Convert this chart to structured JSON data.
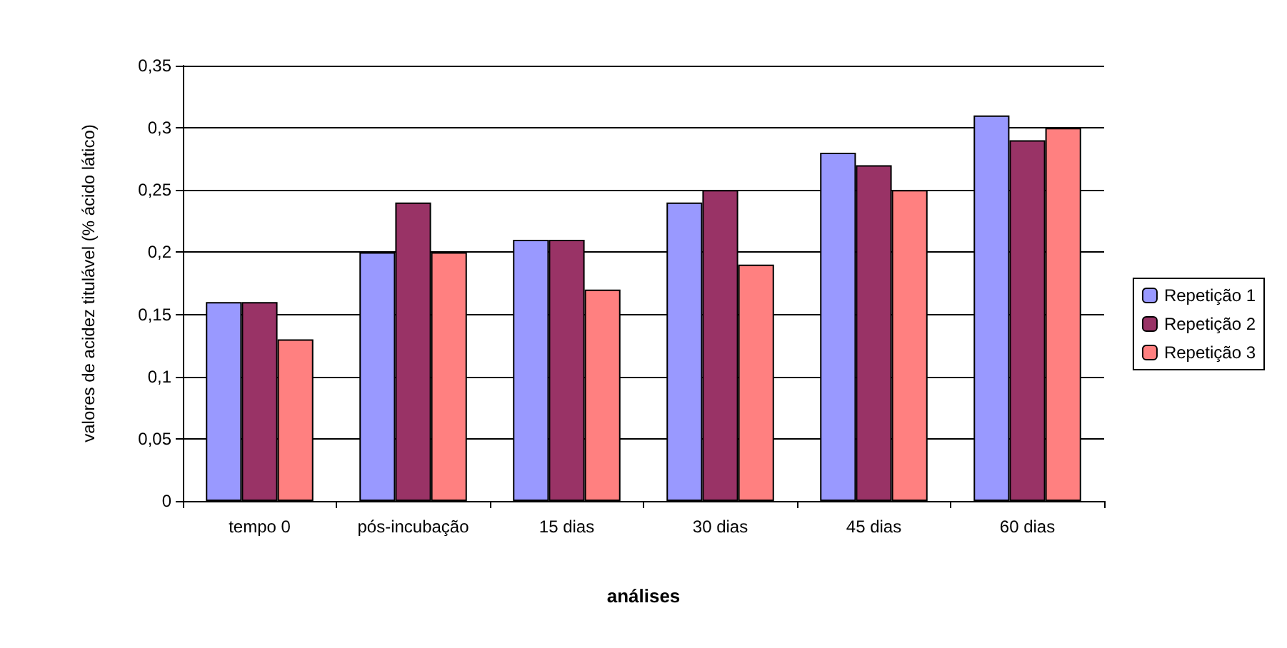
{
  "chart_data": {
    "type": "bar",
    "xlabel": "análises",
    "ylabel": "valores de acidez titulável (% ácido lático)",
    "categories": [
      "tempo 0",
      "pós-incubação",
      "15 dias",
      "30 dias",
      "45 dias",
      "60 dias"
    ],
    "series": [
      {
        "name": "Repetição 1",
        "color": "#9999ff",
        "values": [
          0.16,
          0.2,
          0.21,
          0.24,
          0.28,
          0.31
        ]
      },
      {
        "name": "Repetição 2",
        "color": "#993366",
        "values": [
          0.16,
          0.24,
          0.21,
          0.25,
          0.27,
          0.29
        ]
      },
      {
        "name": "Repetição 3",
        "color": "#ff8080",
        "values": [
          0.13,
          0.2,
          0.17,
          0.19,
          0.25,
          0.3
        ]
      }
    ],
    "ylim": [
      0,
      0.35
    ],
    "yticks": [
      0,
      {
        "value": 0.05,
        "label": "0,05"
      },
      {
        "value": 0.1,
        "label": "0,1"
      },
      {
        "value": 0.15,
        "label": "0,15"
      },
      {
        "value": 0.2,
        "label": "0,2"
      },
      {
        "value": 0.25,
        "label": "0,25"
      },
      {
        "value": 0.3,
        "label": "0,3"
      },
      {
        "value": 0.35,
        "label": "0,35"
      }
    ],
    "grid": "y",
    "legend": "right"
  }
}
